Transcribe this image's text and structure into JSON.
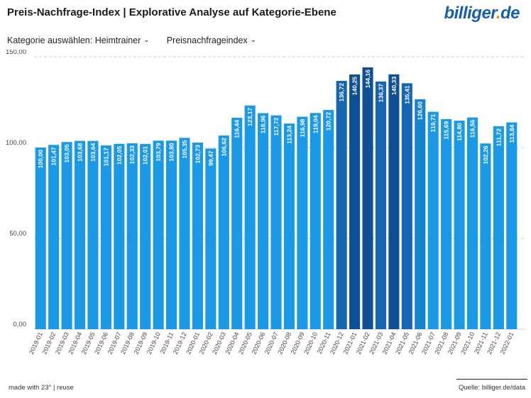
{
  "header": {
    "title": "Preis-Nachfrage-Index | Explorative Analyse auf Kategorie-Ebene",
    "logo_part1": "billiger",
    "logo_part2": ".",
    "logo_part3": "de"
  },
  "controls": {
    "category_label": "Kategorie auswählen: Heimtrainer",
    "metric_label": "Preisnachfrageindex"
  },
  "footer": {
    "left_text": "made with 23° | reuse",
    "source": "Quelle: billiger.de/data"
  },
  "colors": {
    "bar_light": "#1a9ae6",
    "bar_mid": "#1683cf",
    "bar_dark": "#1466b3",
    "bar_darkest": "#0f4f96",
    "grid": "#cccccc",
    "label_text": "#ffffff"
  },
  "chart_data": {
    "type": "bar",
    "title": "",
    "xlabel": "",
    "ylabel": "",
    "ylim": [
      0,
      150
    ],
    "yticks": [
      "0,00",
      "50,00",
      "100,00",
      "150,00"
    ],
    "grid": true,
    "categories": [
      "2019-01",
      "2019-02",
      "2019-03",
      "2019-04",
      "2019-05",
      "2019-06",
      "2019-07",
      "2019-08",
      "2019-09",
      "2019-10",
      "2019-11",
      "2019-12",
      "2020-01",
      "2020-02",
      "2020-03",
      "2020-04",
      "2020-05",
      "2020-06",
      "2020-07",
      "2020-08",
      "2020-09",
      "2020-10",
      "2020-11",
      "2020-12",
      "2021-01",
      "2021-02",
      "2021-03",
      "2021-04",
      "2021-05",
      "2021-06",
      "2021-07",
      "2021-08",
      "2021-09",
      "2021-10",
      "2021-11",
      "2021-12",
      "2022-01"
    ],
    "values": [
      100.0,
      101.47,
      103.05,
      103.68,
      103.64,
      101.17,
      102.05,
      102.33,
      102.01,
      103.79,
      103.8,
      105.35,
      102.73,
      99.47,
      106.62,
      116.44,
      123.17,
      118.96,
      117.72,
      113.24,
      116.98,
      119.04,
      120.72,
      136.72,
      140.25,
      144.16,
      136.37,
      140.33,
      135.41,
      126.6,
      119.71,
      115.69,
      114.8,
      116.56,
      102.26,
      111.72,
      113.84
    ],
    "value_labels": [
      "100,00",
      "101,47",
      "103,05",
      "103,68",
      "103,64",
      "101,17",
      "102,05",
      "102,33",
      "102,01",
      "103,79",
      "103,80",
      "105,35",
      "102,73",
      "99,47",
      "106,62",
      "116,44",
      "123,17",
      "118,96",
      "117,72",
      "113,24",
      "116,98",
      "119,04",
      "120,72",
      "136,72",
      "140,25",
      "144,16",
      "136,37",
      "140,33",
      "135,41",
      "126,60",
      "119,71",
      "115,69",
      "114,80",
      "116,56",
      "102,26",
      "111,72",
      "113,84"
    ]
  }
}
